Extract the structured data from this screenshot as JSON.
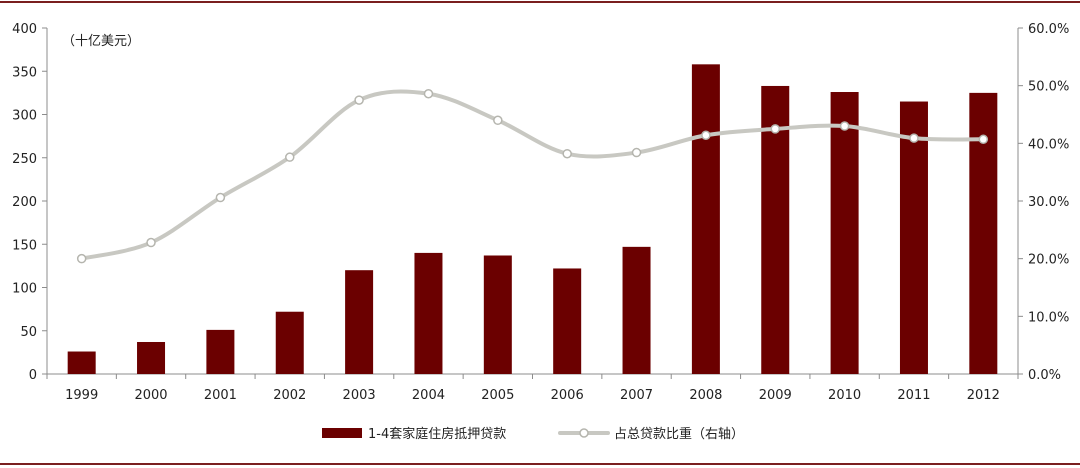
{
  "chart_data": {
    "type": "bar",
    "categories": [
      "1999",
      "2000",
      "2001",
      "2002",
      "2003",
      "2004",
      "2005",
      "2006",
      "2007",
      "2008",
      "2009",
      "2010",
      "2011",
      "2012"
    ],
    "series": [
      {
        "name": "1-4套家庭住房抵押贷款",
        "type": "bar",
        "axis": "left",
        "color": "#6b0000",
        "values": [
          26,
          37,
          51,
          72,
          120,
          140,
          137,
          122,
          147,
          358,
          333,
          326,
          315,
          325
        ]
      },
      {
        "name": "占总贷款比重（右轴）",
        "type": "line",
        "axis": "right",
        "color": "#c8c8c2",
        "values": [
          20.0,
          22.8,
          30.6,
          37.6,
          47.5,
          48.6,
          44.0,
          38.2,
          38.4,
          41.4,
          42.5,
          43.0,
          40.9,
          40.7
        ]
      }
    ],
    "left_axis": {
      "unit_label": "（十亿美元）",
      "ylim": [
        0,
        400
      ],
      "ticks": [
        "0",
        "50",
        "100",
        "150",
        "200",
        "250",
        "300",
        "350",
        "400"
      ]
    },
    "right_axis": {
      "ylim": [
        0,
        60
      ],
      "ticks": [
        "0.0%",
        "10.0%",
        "20.0%",
        "30.0%",
        "40.0%",
        "50.0%",
        "60.0%"
      ]
    },
    "legend_position": "bottom-center",
    "grid": false,
    "frame_color": "#7a1f1f"
  }
}
